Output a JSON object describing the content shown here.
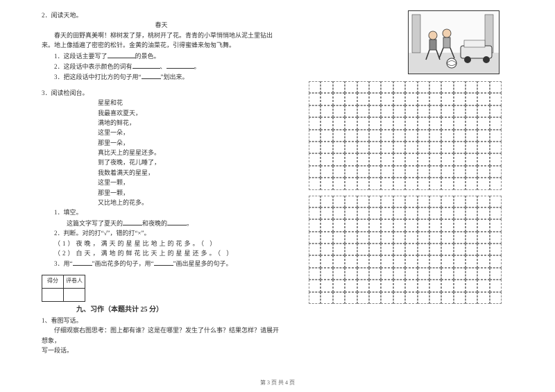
{
  "q2": {
    "num": "2．阅读天地。",
    "title": "春天",
    "para1": "春天的田野真美啊！柳树发了芽，桃树开了花。青青的小草悄悄地从泥土里钻出来。地上像插遍了密密的松针。金黄的油菜花，引得蜜蜂来匆匆飞舞。",
    "sub1_pre": "1．这段话主要写了",
    "sub1_post": "的景色。",
    "sub2_pre": "2．这段话中表示颜色的词有",
    "sub2_mid": "、",
    "sub2_post": "。",
    "sub3_pre": "3．把这段话中打比方的句子用“",
    "sub3_post": "”划出来。"
  },
  "q3": {
    "num": "3．阅读检阅台。",
    "title": "星星和花",
    "lines": [
      "我最喜欢夏天，",
      "满地的鲜花，",
      "这里一朵，",
      "那里一朵，",
      "真比天上的星星还多。",
      "到了夜晚，花儿睡了，",
      "我数着满天的星星，",
      "这里一颗，",
      "那里一颗，",
      "又比地上的花多。"
    ],
    "sub1": "1．填空。",
    "sub1_line_pre": "这篇文字写了夏天的",
    "sub1_line_mid": "和夜晚的",
    "sub1_line_post": "。",
    "sub2": "2．判断。对的打“√”，错的打“×”。",
    "sub2_1": "（1）夜晚，满天的星星比地上的花多。（    ）",
    "sub2_2": "（2）白天，满地的鲜花比天上的星星还多。（    ）",
    "sub3_pre": "3．用“",
    "sub3_mid1": "”画出花多的句子，用“",
    "sub3_mid2": "”画出星星多的句子。"
  },
  "score": {
    "c1": "得分",
    "c2": "评卷人"
  },
  "section9": "九、习作（本题共计 25 分）",
  "q9_1": {
    "num": "1、看图写话。",
    "line1": "仔细观察右图思考：图上都有谁？这是在哪里？发生了什么事？结果怎样？请展开想象，",
    "line2": "写一段话。"
  },
  "footer": "第 3 页 共 4 页",
  "grid": {
    "rows": 9,
    "cols": 16,
    "boxes": 2
  }
}
